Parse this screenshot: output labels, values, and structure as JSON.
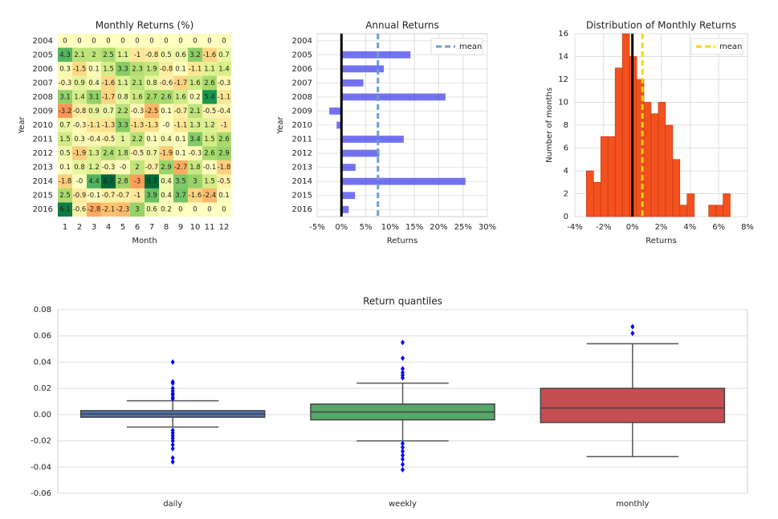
{
  "chart_data": [
    {
      "type": "heatmap",
      "title": "Monthly Returns (%)",
      "x_label": "Month",
      "y_label": "Year",
      "colormap": "RdYlGn",
      "x_categories": [
        1,
        2,
        3,
        4,
        5,
        6,
        7,
        8,
        9,
        10,
        11,
        12
      ],
      "y_categories": [
        2004,
        2005,
        2006,
        2007,
        2008,
        2009,
        2010,
        2011,
        2012,
        2013,
        2014,
        2015,
        2016
      ],
      "values": [
        [
          0,
          0,
          0,
          0,
          0,
          0,
          0,
          0,
          0,
          0,
          0,
          0
        ],
        [
          4.3,
          2.1,
          2,
          2.5,
          1.1,
          -1,
          -0.8,
          0.5,
          0.6,
          3.2,
          -1.6,
          0.7
        ],
        [
          0.3,
          -1.5,
          0.1,
          1.5,
          3.3,
          2.3,
          1.9,
          -0.8,
          0.1,
          -1.1,
          1.1,
          1.4
        ],
        [
          -0.3,
          0.9,
          0.4,
          -1.6,
          1.1,
          2.1,
          0.8,
          -0.6,
          -1.7,
          1.6,
          2.6,
          -0.3
        ],
        [
          3.1,
          1.4,
          3.1,
          -1.7,
          0.8,
          1.6,
          2.7,
          2.6,
          1.6,
          0.2,
          5.4,
          -1.1
        ],
        [
          -3.2,
          -0.8,
          0.9,
          0.7,
          2.2,
          -0.3,
          -2.5,
          0.1,
          -0.7,
          2.1,
          -0.5,
          -0.4
        ],
        [
          0.7,
          -0.3,
          -1.1,
          -1.3,
          3.3,
          -1.3,
          -1.3,
          0,
          -1.1,
          1.3,
          1.2,
          -1
        ],
        [
          1.5,
          0.3,
          -0.4,
          -0.5,
          1,
          2.2,
          0.1,
          0.4,
          0.1,
          3.4,
          1.5,
          2.6
        ],
        [
          0.5,
          -1.9,
          1.3,
          2.4,
          1.8,
          -0.5,
          0.7,
          -1.9,
          0.1,
          -0.3,
          2.6,
          2.9
        ],
        [
          0.1,
          0.8,
          1.2,
          -0.3,
          0,
          2,
          -0.7,
          2.9,
          -2.7,
          1.8,
          -0.1,
          -1.8
        ],
        [
          -1.8,
          0,
          4.4,
          6.7,
          2.8,
          -3,
          6.7,
          0.4,
          3.5,
          3,
          1.5,
          -0.5
        ],
        [
          2.5,
          -0.9,
          -0.1,
          -0.7,
          -0.7,
          -1,
          3.9,
          0.4,
          3.7,
          -1.6,
          -2.4,
          0.1
        ],
        [
          6.1,
          -0.6,
          -2.8,
          -2.1,
          -2.3,
          3,
          0.6,
          0.2,
          0,
          0,
          0,
          0
        ]
      ],
      "value_labels": [
        [
          "0",
          "0",
          "0",
          "0",
          "0",
          "0",
          "0",
          "0",
          "0",
          "0",
          "0",
          "0"
        ],
        [
          "4.3",
          "2.1",
          "2",
          "2.5",
          "1.1",
          "-1",
          "-0.8",
          "0.5",
          "0.6",
          "3.2",
          "-1.6",
          "0.7"
        ],
        [
          "0.3",
          "-1.5",
          "0.1",
          "1.5",
          "3.3",
          "2.3",
          "1.9",
          "-0.8",
          "0.1",
          "-1.1",
          "1.1",
          "1.4"
        ],
        [
          "-0.3",
          "0.9",
          "0.4",
          "-1.6",
          "1.1",
          "2.1",
          "0.8",
          "-0.6",
          "-1.7",
          "1.6",
          "2.6",
          "-0.3"
        ],
        [
          "3.1",
          "1.4",
          "3.1",
          "-1.7",
          "0.8",
          "1.6",
          "2.7",
          "2.6",
          "1.6",
          "0.2",
          "5.4",
          "-1.1"
        ],
        [
          "-3.2",
          "-0.8",
          "0.9",
          "0.7",
          "2.2",
          "-0.3",
          "-2.5",
          "0.1",
          "-0.7",
          "2.1",
          "-0.5",
          "-0.4"
        ],
        [
          "0.7",
          "-0.3",
          "-1.1",
          "-1.3",
          "3.3",
          "-1.3",
          "-1.3",
          "-0",
          "-1.1",
          "1.3",
          "1.2",
          "-1"
        ],
        [
          "1.5",
          "0.3",
          "-0.4",
          "-0.5",
          "1",
          "2.2",
          "0.1",
          "0.4",
          "0.1",
          "3.4",
          "1.5",
          "2.6"
        ],
        [
          "0.5",
          "-1.9",
          "1.3",
          "2.4",
          "1.8",
          "-0.5",
          "0.7",
          "-1.9",
          "0.1",
          "-0.3",
          "2.6",
          "2.9"
        ],
        [
          "0.1",
          "0.8",
          "1.2",
          "-0.3",
          "-0",
          "2",
          "-0.7",
          "2.9",
          "-2.7",
          "1.8",
          "-0.1",
          "-1.8"
        ],
        [
          "-1.8",
          "-0",
          "4.4",
          "6.7",
          "2.8",
          "-3",
          "6.7",
          "0.4",
          "3.5",
          "3",
          "1.5",
          "-0.5"
        ],
        [
          "2.5",
          "-0.9",
          "-0.1",
          "-0.7",
          "-0.7",
          "-1",
          "3.9",
          "0.4",
          "3.7",
          "-1.6",
          "-2.4",
          "0.1"
        ],
        [
          "6.1",
          "-0.6",
          "-2.8",
          "-2.1",
          "-2.3",
          "3",
          "0.6",
          "0.2",
          "0",
          "0",
          "0",
          "0"
        ]
      ]
    },
    {
      "type": "bar",
      "orientation": "horizontal",
      "title": "Annual Returns",
      "x_label": "Returns",
      "y_label": "Year",
      "categories": [
        2004,
        2005,
        2006,
        2007,
        2008,
        2009,
        2010,
        2011,
        2012,
        2013,
        2014,
        2015,
        2016
      ],
      "values": [
        0,
        14.2,
        8.7,
        4.5,
        21.4,
        -2.5,
        -1,
        12.8,
        7.8,
        2.9,
        25.5,
        2.8,
        1.5
      ],
      "color": "#4444ee",
      "xlim": [
        -5,
        30
      ],
      "xticks": [
        {
          "value": -5,
          "label": "-5%"
        },
        {
          "value": 0,
          "label": "0%"
        },
        {
          "value": 5,
          "label": "5%"
        },
        {
          "value": 10,
          "label": "10%"
        },
        {
          "value": 15,
          "label": "15%"
        },
        {
          "value": 20,
          "label": "20%"
        },
        {
          "value": 25,
          "label": "25%"
        },
        {
          "value": 30,
          "label": "30%"
        }
      ],
      "reference_line": {
        "name": "mean",
        "value": 7.5,
        "color": "#6f9fc8"
      },
      "grid": true,
      "legend": "upper right"
    },
    {
      "type": "histogram",
      "title": "Distribution of Monthly Returns",
      "x_label": "Returns",
      "y_label": "Number of months",
      "bins": [
        -3.2,
        -2.7,
        -2.2,
        -1.7,
        -1.2,
        -0.7,
        -0.2,
        0.3,
        0.8,
        1.3,
        1.8,
        2.3,
        2.8,
        3.3,
        3.8,
        4.3,
        4.8,
        5.3,
        5.8,
        6.3,
        6.8
      ],
      "counts": [
        4,
        3,
        7,
        7,
        13,
        16,
        14,
        12,
        10,
        9,
        10,
        8,
        5,
        1,
        2,
        0,
        0,
        1,
        1,
        2
      ],
      "color": "#f4511e",
      "xlim": [
        -4,
        8
      ],
      "xticks": [
        {
          "value": -4,
          "label": "-4%"
        },
        {
          "value": -2,
          "label": "-2%"
        },
        {
          "value": 0,
          "label": "0%"
        },
        {
          "value": 2,
          "label": "2%"
        },
        {
          "value": 4,
          "label": "4%"
        },
        {
          "value": 6,
          "label": "6%"
        },
        {
          "value": 8,
          "label": "8%"
        }
      ],
      "ylim": [
        0,
        16
      ],
      "yticks": [
        0,
        2,
        4,
        6,
        8,
        10,
        12,
        14,
        16
      ],
      "reference_line": {
        "name": "mean",
        "value": 0.7,
        "color": "#ffd700"
      },
      "grid": true,
      "legend": "upper right"
    },
    {
      "type": "box",
      "title": "Return quantiles",
      "boxes": [
        {
          "name": "daily",
          "color": "#4c72b0",
          "whisker_low": -0.0095,
          "q1": -0.002,
          "median": 0.0005,
          "q3": 0.003,
          "whisker_high": 0.0105,
          "fliers": [
            0.04,
            0.025,
            0.024,
            0.02,
            0.018,
            0.016,
            0.015,
            0.013,
            0.012,
            -0.012,
            -0.014,
            -0.016,
            -0.018,
            -0.02,
            -0.023,
            -0.026,
            -0.033,
            -0.036
          ]
        },
        {
          "name": "weekly",
          "color": "#55a868",
          "whisker_low": -0.02,
          "q1": -0.004,
          "median": 0.002,
          "q3": 0.008,
          "whisker_high": 0.024,
          "fliers": [
            0.055,
            0.043,
            0.035,
            0.032,
            0.03,
            0.028,
            -0.022,
            -0.025,
            -0.028,
            -0.031,
            -0.034,
            -0.038,
            -0.042
          ]
        },
        {
          "name": "monthly",
          "color": "#c44e52",
          "whisker_low": -0.032,
          "q1": -0.006,
          "median": 0.005,
          "q3": 0.02,
          "whisker_high": 0.054,
          "fliers": [
            0.067,
            0.062
          ]
        }
      ],
      "flier_color": "#0000ff",
      "ylim": [
        -0.06,
        0.08
      ],
      "yticks": [
        -0.06,
        -0.04,
        -0.02,
        {
          "value": 0,
          "label": "0.00"
        },
        0.02,
        0.04,
        0.06,
        0.08
      ],
      "grid": true
    }
  ]
}
